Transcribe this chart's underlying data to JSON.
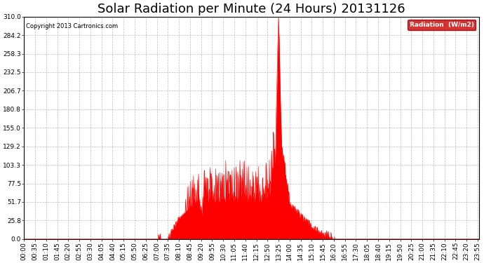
{
  "title": "Solar Radiation per Minute (24 Hours) 20131126",
  "copyright_text": "Copyright 2013 Cartronics.com",
  "background_color": "#ffffff",
  "plot_bg_color": "#ffffff",
  "fill_color": "#ff0000",
  "line_color": "#ff0000",
  "grid_color": "#bbbbbb",
  "dashed_zero_color": "#ff0000",
  "y_ticks": [
    0.0,
    25.8,
    51.7,
    77.5,
    103.3,
    129.2,
    155.0,
    180.8,
    206.7,
    232.5,
    258.3,
    284.2,
    310.0
  ],
  "y_max": 310.0,
  "total_minutes": 1440,
  "title_fontsize": 13,
  "tick_fontsize": 6.5,
  "legend_label": "Radiation  (W/m2)",
  "x_tick_step": 35
}
